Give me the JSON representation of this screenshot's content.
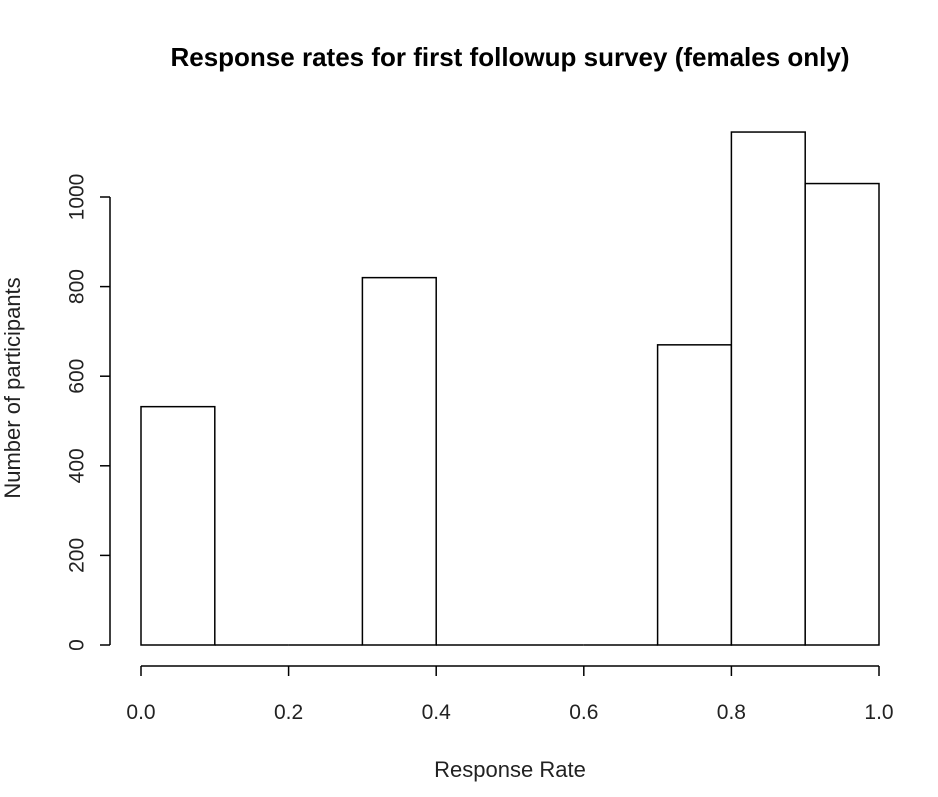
{
  "chart_data": {
    "type": "bar",
    "title": "Response rates for first followup survey (females only)",
    "xlabel": "Response Rate",
    "ylabel": "Number of participants",
    "xlim": [
      0,
      1
    ],
    "ylim": [
      0,
      1150
    ],
    "x_ticks": [
      "0.0",
      "0.2",
      "0.4",
      "0.6",
      "0.8",
      "1.0"
    ],
    "y_ticks": [
      "0",
      "200",
      "400",
      "600",
      "800",
      "1000"
    ],
    "bins": [
      {
        "start": 0.0,
        "end": 0.1,
        "count": 532
      },
      {
        "start": 0.1,
        "end": 0.2,
        "count": 0
      },
      {
        "start": 0.2,
        "end": 0.3,
        "count": 0
      },
      {
        "start": 0.3,
        "end": 0.4,
        "count": 820
      },
      {
        "start": 0.4,
        "end": 0.5,
        "count": 0
      },
      {
        "start": 0.5,
        "end": 0.6,
        "count": 0
      },
      {
        "start": 0.6,
        "end": 0.7,
        "count": 0
      },
      {
        "start": 0.7,
        "end": 0.8,
        "count": 670
      },
      {
        "start": 0.8,
        "end": 0.9,
        "count": 1145
      },
      {
        "start": 0.9,
        "end": 1.0,
        "count": 1030
      }
    ],
    "grid": false,
    "legend": "none",
    "bar_fill": "#ffffff",
    "bar_stroke": "#000000"
  }
}
